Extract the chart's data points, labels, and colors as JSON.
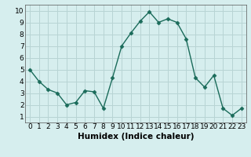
{
  "x": [
    0,
    1,
    2,
    3,
    4,
    5,
    6,
    7,
    8,
    9,
    10,
    11,
    12,
    13,
    14,
    15,
    16,
    17,
    18,
    19,
    20,
    21,
    22,
    23
  ],
  "y": [
    5,
    4,
    3.3,
    3,
    2,
    2.2,
    3.2,
    3.1,
    1.7,
    4.3,
    7,
    8.1,
    9.1,
    9.9,
    9,
    9.3,
    9,
    7.6,
    4.3,
    3.5,
    4.5,
    1.7,
    1.1,
    1.7
  ],
  "line_color": "#1a6b5a",
  "marker": "D",
  "marker_size": 2.5,
  "bg_color": "#d6eeee",
  "grid_color": "#b8d4d4",
  "xlabel": "Humidex (Indice chaleur)",
  "xlim": [
    -0.5,
    23.5
  ],
  "ylim": [
    0.5,
    10.5
  ],
  "yticks": [
    1,
    2,
    3,
    4,
    5,
    6,
    7,
    8,
    9,
    10
  ],
  "xticks": [
    0,
    1,
    2,
    3,
    4,
    5,
    6,
    7,
    8,
    9,
    10,
    11,
    12,
    13,
    14,
    15,
    16,
    17,
    18,
    19,
    20,
    21,
    22,
    23
  ],
  "xlabel_fontsize": 7.5,
  "tick_fontsize": 6.5
}
